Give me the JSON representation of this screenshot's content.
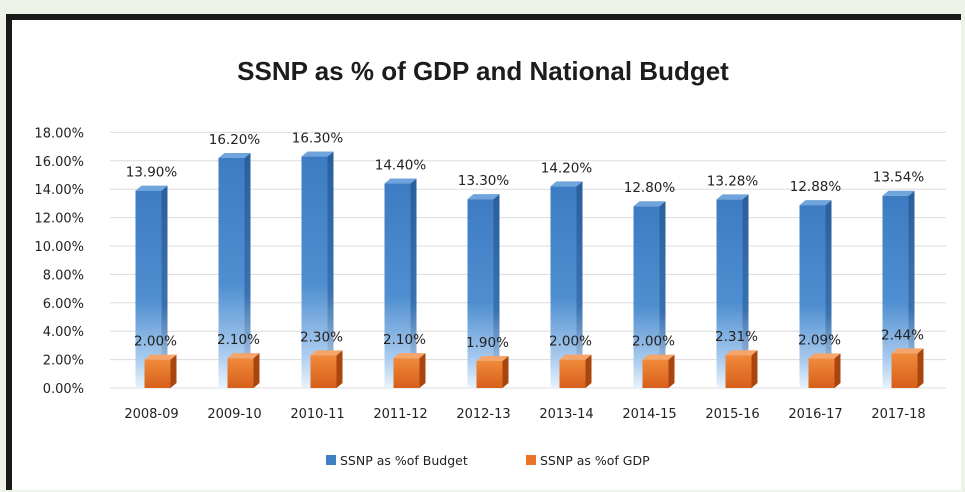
{
  "chart_data": {
    "type": "bar",
    "title": "SSNP as % of GDP and National Budget",
    "categories": [
      "2008-09",
      "2009-10",
      "2010-11",
      "2011-12",
      "2012-13",
      "2013-14",
      "2014-15",
      "2015-16",
      "2016-17",
      "2017-18"
    ],
    "series": [
      {
        "name": "SSNP as %of Budget",
        "color": "#3f80c4",
        "values": [
          13.9,
          16.2,
          16.3,
          14.4,
          13.3,
          14.2,
          12.8,
          13.28,
          12.88,
          13.54
        ],
        "labels": [
          "13.90%",
          "16.20%",
          "16.30%",
          "14.40%",
          "13.30%",
          "14.20%",
          "12.80%",
          "13.28%",
          "12.88%",
          "13.54%"
        ]
      },
      {
        "name": "SSNP as %of GDP",
        "color": "#e8742a",
        "values": [
          2.0,
          2.1,
          2.3,
          2.1,
          1.9,
          2.0,
          2.0,
          2.31,
          2.09,
          2.44
        ],
        "labels": [
          "2.00%",
          "2.10%",
          "2.30%",
          "2.10%",
          "1.90%",
          "2.00%",
          "2.00%",
          "2.31%",
          "2.09%",
          "2.44%"
        ]
      }
    ],
    "yticks": [
      "0.00%",
      "2.00%",
      "4.00%",
      "6.00%",
      "8.00%",
      "10.00%",
      "12.00%",
      "14.00%",
      "16.00%",
      "18.00%"
    ],
    "ylim": [
      0,
      18
    ],
    "grid": true,
    "legend_position": "bottom"
  }
}
